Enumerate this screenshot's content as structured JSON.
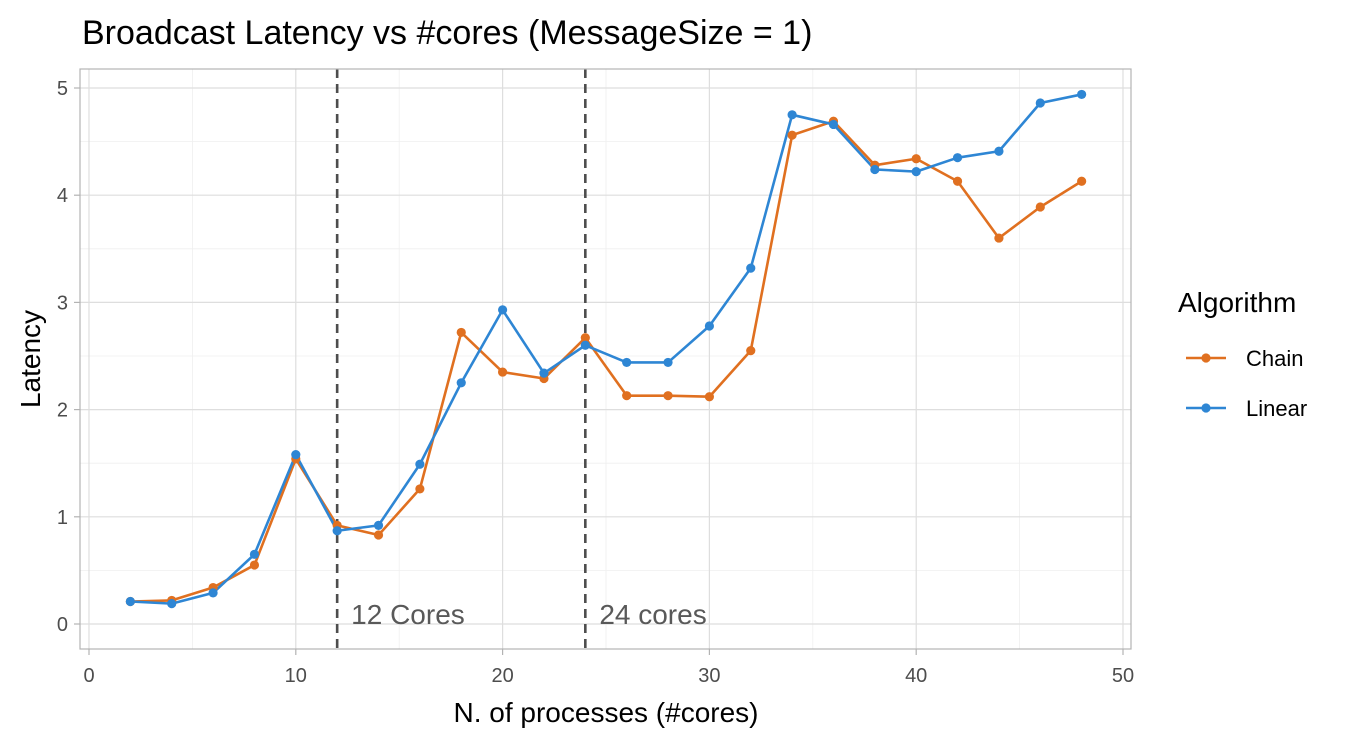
{
  "chart_data": {
    "type": "line",
    "title": "Broadcast Latency vs #cores (MessageSize = 1)",
    "xlabel": "N. of processes (#cores)",
    "ylabel": "Latency",
    "xlim": [
      0,
      50
    ],
    "ylim": [
      0,
      5
    ],
    "xticks": [
      0,
      10,
      20,
      30,
      40,
      50
    ],
    "yticks": [
      0,
      1,
      2,
      3,
      4,
      5
    ],
    "grid": true,
    "legend": {
      "title": "Algorithm",
      "position": "right"
    },
    "x": [
      2,
      4,
      6,
      8,
      10,
      12,
      14,
      16,
      18,
      20,
      22,
      24,
      26,
      28,
      30,
      32,
      34,
      36,
      38,
      40,
      42,
      44,
      46,
      48
    ],
    "series": [
      {
        "name": "Chain",
        "color": "#E07020",
        "values": [
          0.21,
          0.22,
          0.34,
          0.55,
          1.54,
          0.92,
          0.83,
          1.26,
          2.72,
          2.35,
          2.29,
          2.67,
          2.13,
          2.13,
          2.12,
          2.55,
          4.56,
          4.69,
          4.28,
          4.34,
          4.13,
          3.6,
          3.89,
          4.13
        ]
      },
      {
        "name": "Linear",
        "color": "#2E86D4",
        "values": [
          0.21,
          0.19,
          0.29,
          0.65,
          1.58,
          0.87,
          0.92,
          1.49,
          2.25,
          2.93,
          2.34,
          2.6,
          2.44,
          2.44,
          2.78,
          3.32,
          4.75,
          4.66,
          4.24,
          4.22,
          4.35,
          4.41,
          4.86,
          4.94
        ]
      }
    ],
    "vlines": [
      {
        "x": 12,
        "label": "12 Cores"
      },
      {
        "x": 24,
        "label": "24 cores"
      }
    ]
  }
}
